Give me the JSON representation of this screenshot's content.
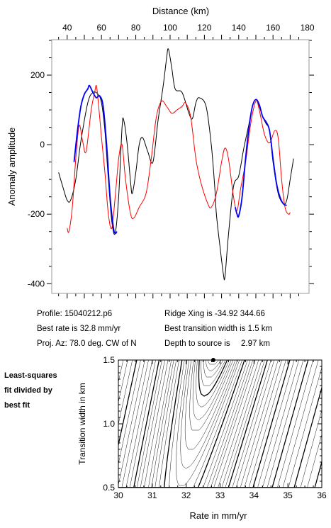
{
  "chart_data": [
    {
      "type": "line",
      "xlabel": "Distance (km)",
      "ylabel": "Anomaly amplitude",
      "xlim": [
        31,
        181
      ],
      "ylim": [
        -428,
        302
      ],
      "x_ticks": [
        40,
        60,
        80,
        100,
        120,
        140,
        160,
        180
      ],
      "y_ticks": [
        200,
        0,
        -200,
        -400
      ],
      "x_axis_position": "top",
      "series": [
        {
          "color": "#000000",
          "points": [
            [
              35,
              -80
            ],
            [
              38,
              -130
            ],
            [
              40,
              -160
            ],
            [
              42,
              -160
            ],
            [
              45,
              -100
            ],
            [
              48,
              10
            ],
            [
              52,
              120
            ],
            [
              55,
              150
            ],
            [
              58,
              145
            ],
            [
              60,
              120
            ],
            [
              62,
              40
            ],
            [
              64,
              -100
            ],
            [
              66,
              -220
            ],
            [
              68,
              -255
            ],
            [
              70,
              -150
            ],
            [
              72,
              50
            ],
            [
              73,
              70
            ],
            [
              75,
              0
            ],
            [
              77,
              -110
            ],
            [
              78,
              -140
            ],
            [
              80,
              -80
            ],
            [
              82,
              0
            ],
            [
              84,
              20
            ],
            [
              87,
              -20
            ],
            [
              90,
              -50
            ],
            [
              93,
              70
            ],
            [
              96,
              170
            ],
            [
              98,
              250
            ],
            [
              99,
              275
            ],
            [
              101,
              220
            ],
            [
              103,
              160
            ],
            [
              107,
              150
            ],
            [
              111,
              90
            ],
            [
              113,
              75
            ],
            [
              115,
              120
            ],
            [
              117,
              135
            ],
            [
              121,
              110
            ],
            [
              124,
              0
            ],
            [
              126,
              -120
            ],
            [
              127,
              -200
            ],
            [
              129,
              -290
            ],
            [
              131,
              -370
            ],
            [
              132,
              -380
            ],
            [
              134,
              -260
            ],
            [
              137,
              -120
            ],
            [
              140,
              -90
            ],
            [
              143,
              -10
            ],
            [
              146,
              60
            ],
            [
              148,
              110
            ],
            [
              150,
              130
            ],
            [
              152,
              110
            ],
            [
              154,
              80
            ],
            [
              156,
              60
            ],
            [
              158,
              40
            ],
            [
              160,
              -50
            ],
            [
              163,
              -140
            ],
            [
              166,
              -170
            ],
            [
              168,
              -160
            ],
            [
              170,
              -100
            ],
            [
              172,
              -40
            ]
          ]
        },
        {
          "color": "#ff0000",
          "points": [
            [
              40,
              -240
            ],
            [
              41,
              -250
            ],
            [
              43,
              -180
            ],
            [
              45,
              -40
            ],
            [
              47,
              55
            ],
            [
              49,
              10
            ],
            [
              51,
              -20
            ],
            [
              54,
              100
            ],
            [
              56,
              150
            ],
            [
              57,
              170
            ],
            [
              58,
              130
            ],
            [
              60,
              20
            ],
            [
              62,
              -80
            ],
            [
              64,
              -200
            ],
            [
              66,
              -240
            ],
            [
              68,
              -150
            ],
            [
              70,
              -40
            ],
            [
              72,
              0
            ],
            [
              74,
              -100
            ],
            [
              77,
              -200
            ],
            [
              79,
              -210
            ],
            [
              82,
              -180
            ],
            [
              86,
              -140
            ],
            [
              89,
              -40
            ],
            [
              92,
              80
            ],
            [
              95,
              125
            ],
            [
              98,
              110
            ],
            [
              101,
              90
            ],
            [
              104,
              100
            ],
            [
              107,
              110
            ],
            [
              109,
              120
            ],
            [
              112,
              80
            ],
            [
              115,
              -40
            ],
            [
              118,
              -110
            ],
            [
              122,
              -170
            ],
            [
              124,
              -180
            ],
            [
              127,
              -140
            ],
            [
              130,
              -50
            ],
            [
              132,
              -10
            ],
            [
              134,
              -40
            ],
            [
              137,
              -150
            ],
            [
              139,
              -190
            ],
            [
              141,
              -130
            ],
            [
              144,
              -50
            ],
            [
              147,
              60
            ],
            [
              150,
              125
            ],
            [
              152,
              100
            ],
            [
              155,
              30
            ],
            [
              158,
              5
            ],
            [
              161,
              40
            ],
            [
              163,
              20
            ],
            [
              165,
              -100
            ],
            [
              167,
              -180
            ],
            [
              169,
              -200
            ],
            [
              170,
              -195
            ]
          ]
        },
        {
          "color": "#0000ff",
          "points": [
            [
              44,
              -50
            ],
            [
              46,
              40
            ],
            [
              48,
              110
            ],
            [
              50,
              145
            ],
            [
              52,
              160
            ],
            [
              53,
              170
            ],
            [
              55,
              150
            ],
            [
              57,
              135
            ],
            [
              59,
              140
            ],
            [
              61,
              110
            ],
            [
              63,
              0
            ],
            [
              65,
              -150
            ],
            [
              67,
              -240
            ],
            [
              68,
              -255
            ],
            [
              69,
              -250
            ]
          ]
        },
        {
          "color": "#0000ff",
          "points": [
            [
              138,
              -180
            ],
            [
              139,
              -200
            ],
            [
              140,
              -205
            ],
            [
              142,
              -150
            ],
            [
              144,
              -40
            ],
            [
              146,
              50
            ],
            [
              148,
              110
            ],
            [
              150,
              130
            ],
            [
              152,
              115
            ],
            [
              154,
              80
            ],
            [
              156,
              65
            ],
            [
              158,
              40
            ],
            [
              160,
              -40
            ],
            [
              162,
              -110
            ],
            [
              164,
              -150
            ],
            [
              166,
              -170
            ],
            [
              168,
              -175
            ]
          ]
        }
      ]
    },
    {
      "type": "contour",
      "xlabel": "Rate in mm/yr",
      "ylabel": "Transition width in km",
      "xlim": [
        30,
        36
      ],
      "ylim": [
        0.5,
        1.5
      ],
      "x_ticks": [
        30,
        31,
        32,
        33,
        34,
        35,
        36
      ],
      "y_ticks": [
        0.5,
        1.0,
        1.5
      ],
      "y_tick_labels": [
        "0.5",
        "1.0",
        "1.5"
      ],
      "best_fit": {
        "rate": 32.8,
        "width": 1.5
      },
      "contour_levels": [
        1.03,
        1.06,
        1.1,
        1.15,
        1.2,
        1.26,
        1.33,
        1.4,
        1.5,
        1.6,
        1.7,
        1.85,
        2.0,
        2.2,
        2.4,
        2.6,
        2.8,
        3.1,
        3.4,
        3.7,
        4.0,
        4.4,
        4.8,
        5.3,
        5.8,
        6.4,
        7.0,
        7.7,
        8.5,
        9.3,
        10.2,
        11.2,
        12.3,
        13.5,
        14.8,
        16.3,
        18.0,
        20.0,
        22.0,
        24.0,
        26.5,
        29.0,
        32.0,
        35.0,
        38.0,
        41.0
      ],
      "bold_levels": [
        1.2,
        2.0,
        4.0,
        7.0,
        10.2,
        14.8,
        20.0,
        26.5,
        35.0
      ]
    }
  ],
  "info": {
    "profile": "Profile: 15040212.p6",
    "best_rate": "Best rate is 32.8 mm/yr",
    "proj_az": "Proj. Az: 78.0 deg. CW of N",
    "ridge_xing": "Ridge Xing is -34.92 344.66",
    "best_width": "Best transition width is 1.5 km",
    "depth_label": "Depth to source is",
    "depth_value": "2.97 km"
  },
  "side_note": [
    "Least-squares",
    "fit divided by",
    "best fit"
  ]
}
